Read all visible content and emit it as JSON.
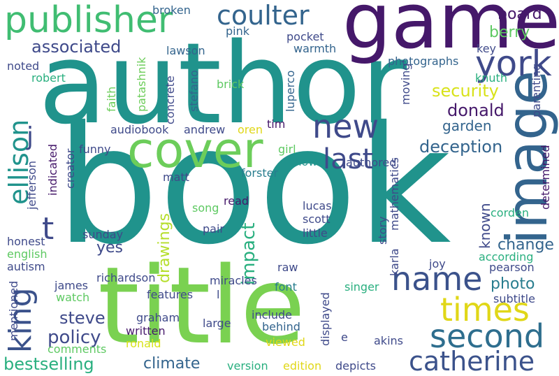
{
  "palette": {
    "dark_purple": "#45186a",
    "indigo": "#3f4a8a",
    "blue": "#33648d",
    "teal_blue": "#287d8e",
    "teal": "#20938c",
    "green_teal": "#29af7f",
    "green": "#5ec962",
    "light_green": "#7ad151",
    "lime": "#b5de2b",
    "yellow": "#e0d718"
  },
  "words": [
    {
      "text": "book",
      "color": "#20938c",
      "vertical": false
    },
    {
      "text": "author",
      "color": "#20938c",
      "vertical": false
    },
    {
      "text": "title",
      "color": "#7ad151",
      "vertical": false
    },
    {
      "text": "game",
      "color": "#45186a",
      "vertical": false
    },
    {
      "text": "image",
      "color": "#33648d",
      "vertical": true
    },
    {
      "text": "cover",
      "color": "#6ccd5a",
      "vertical": false
    },
    {
      "text": "publisher",
      "color": "#40bd72",
      "vertical": false
    },
    {
      "text": "second",
      "color": "#2e6e8e",
      "vertical": false
    },
    {
      "text": "name",
      "color": "#3b528b",
      "vertical": false
    },
    {
      "text": "catherine",
      "color": "#3b528b",
      "vertical": false
    },
    {
      "text": "times",
      "color": "#e0d718",
      "vertical": false
    },
    {
      "text": "new",
      "color": "#3f4a8a",
      "vertical": false
    },
    {
      "text": "king",
      "color": "#3b528b",
      "vertical": true
    },
    {
      "text": "coulter",
      "color": "#33648d",
      "vertical": false
    },
    {
      "text": "york",
      "color": "#3f4a8a",
      "vertical": false
    },
    {
      "text": "last",
      "color": "#3f4a8a",
      "vertical": false
    },
    {
      "text": "ellison",
      "color": "#20938c",
      "vertical": true
    },
    {
      "text": "t",
      "color": "#3f4a8a",
      "vertical": false
    },
    {
      "text": "j",
      "color": "#3f4a8a",
      "vertical": false
    },
    {
      "text": "steve",
      "color": "#3f4a8a",
      "vertical": false
    },
    {
      "text": "policy",
      "color": "#3f4a8a",
      "vertical": false
    },
    {
      "text": "bestselling",
      "color": "#29af7f",
      "vertical": false
    },
    {
      "text": "impact",
      "color": "#29af7f",
      "vertical": true
    },
    {
      "text": "security",
      "color": "#d8e219",
      "vertical": false
    },
    {
      "text": "drawings",
      "color": "#b5de2b",
      "vertical": true
    },
    {
      "text": "climate",
      "color": "#33648d",
      "vertical": false
    },
    {
      "text": "donald",
      "color": "#45186a",
      "vertical": false
    },
    {
      "text": "deception",
      "color": "#33648d",
      "vertical": false
    },
    {
      "text": "associated",
      "color": "#3f4a8a",
      "vertical": false
    },
    {
      "text": "board",
      "color": "#45186a",
      "vertical": false
    },
    {
      "text": "berry",
      "color": "#5ec962",
      "vertical": false
    },
    {
      "text": "garden",
      "color": "#33648d",
      "vertical": false
    },
    {
      "text": "photo",
      "color": "#287d8e",
      "vertical": false
    },
    {
      "text": "change",
      "color": "#33648d",
      "vertical": false
    },
    {
      "text": "known",
      "color": "#3f4a8a",
      "vertical": true
    },
    {
      "text": "yes",
      "color": "#3f4a8a",
      "vertical": false
    },
    {
      "text": "audiobook",
      "color": "#3f4a8a",
      "vertical": false
    },
    {
      "text": "andrew",
      "color": "#3f4a8a",
      "vertical": false
    },
    {
      "text": "oren",
      "color": "#e0d718",
      "vertical": false
    },
    {
      "text": "tim",
      "color": "#45186a",
      "vertical": false
    },
    {
      "text": "pocket",
      "color": "#3f4a8a",
      "vertical": false
    },
    {
      "text": "warmth",
      "color": "#33648d",
      "vertical": false
    },
    {
      "text": "photographs",
      "color": "#33648d",
      "vertical": false
    },
    {
      "text": "key",
      "color": "#3f4a8a",
      "vertical": false
    },
    {
      "text": "knuth",
      "color": "#29af7f",
      "vertical": false
    },
    {
      "text": "parenting",
      "color": "#3f4a8a",
      "vertical": true
    },
    {
      "text": "broken",
      "color": "#33648d",
      "vertical": false
    },
    {
      "text": "pink",
      "color": "#33648d",
      "vertical": false
    },
    {
      "text": "lawson",
      "color": "#33648d",
      "vertical": false
    },
    {
      "text": "noted",
      "color": "#3f4a8a",
      "vertical": false
    },
    {
      "text": "robert",
      "color": "#29af7f",
      "vertical": false
    },
    {
      "text": "faith",
      "color": "#6ccd5a",
      "vertical": true
    },
    {
      "text": "patashnik",
      "color": "#6ccd5a",
      "vertical": true
    },
    {
      "text": "concrete",
      "color": "#3f4a8a",
      "vertical": true
    },
    {
      "text": "stefano",
      "color": "#33648d",
      "vertical": true
    },
    {
      "text": "brick",
      "color": "#5ec962",
      "vertical": false
    },
    {
      "text": "luperco",
      "color": "#33648d",
      "vertical": true
    },
    {
      "text": "moving'",
      "color": "#3f4a8a",
      "vertical": true
    },
    {
      "text": "funny",
      "color": "#3f4a8a",
      "vertical": false
    },
    {
      "text": "girl",
      "color": "#5ec962",
      "vertical": false
    },
    {
      "text": "shown",
      "color": "#20938c",
      "vertical": false
    },
    {
      "text": "forster",
      "color": "#287d8e",
      "vertical": false
    },
    {
      "text": "matt",
      "color": "#3f4a8a",
      "vertical": false
    },
    {
      "text": "indicated",
      "color": "#45186a",
      "vertical": true
    },
    {
      "text": "creator",
      "color": "#3f4a8a",
      "vertical": true
    },
    {
      "text": "jefferson",
      "color": "#3f4a8a",
      "vertical": true
    },
    {
      "text": "authored",
      "color": "#3f4a8a",
      "vertical": false
    },
    {
      "text": "determined",
      "color": "#45186a",
      "vertical": true
    },
    {
      "text": "mathematics",
      "color": "#3f4a8a",
      "vertical": true
    },
    {
      "text": "sunday",
      "color": "#3f4a8a",
      "vertical": false
    },
    {
      "text": "song",
      "color": "#5ec962",
      "vertical": false
    },
    {
      "text": "read",
      "color": "#45186a",
      "vertical": false
    },
    {
      "text": "lucas",
      "color": "#3f4a8a",
      "vertical": false
    },
    {
      "text": "scott",
      "color": "#3f4a8a",
      "vertical": false
    },
    {
      "text": "little",
      "color": "#3f4a8a",
      "vertical": false
    },
    {
      "text": "story",
      "color": "#3f4a8a",
      "vertical": true
    },
    {
      "text": "corden",
      "color": "#29af7f",
      "vertical": false
    },
    {
      "text": "pair",
      "color": "#3f4a8a",
      "vertical": false
    },
    {
      "text": "honest",
      "color": "#3f4a8a",
      "vertical": false
    },
    {
      "text": "english",
      "color": "#5ec962",
      "vertical": false
    },
    {
      "text": "autism",
      "color": "#3f4a8a",
      "vertical": false
    },
    {
      "text": "karla",
      "color": "#3f4a8a",
      "vertical": true
    },
    {
      "text": "joy",
      "color": "#3f4a8a",
      "vertical": false
    },
    {
      "text": "according",
      "color": "#29af7f",
      "vertical": false
    },
    {
      "text": "pearson",
      "color": "#3f4a8a",
      "vertical": false
    },
    {
      "text": "raw",
      "color": "#3f4a8a",
      "vertical": false
    },
    {
      "text": "mentioned",
      "color": "#3f4a8a",
      "vertical": true
    },
    {
      "text": "james",
      "color": "#3f4a8a",
      "vertical": false
    },
    {
      "text": "richardson",
      "color": "#3f4a8a",
      "vertical": false
    },
    {
      "text": "miracles",
      "color": "#3f4a8a",
      "vertical": false
    },
    {
      "text": "l",
      "color": "#3f4a8a",
      "vertical": false
    },
    {
      "text": "font",
      "color": "#287d8e",
      "vertical": false
    },
    {
      "text": "singer",
      "color": "#29af7f",
      "vertical": false
    },
    {
      "text": "features",
      "color": "#3f4a8a",
      "vertical": false
    },
    {
      "text": "watch",
      "color": "#5ec962",
      "vertical": false
    },
    {
      "text": "subtitle",
      "color": "#3f4a8a",
      "vertical": false
    },
    {
      "text": "graham",
      "color": "#3f4a8a",
      "vertical": false
    },
    {
      "text": "include",
      "color": "#3f4a8a",
      "vertical": false
    },
    {
      "text": "behind",
      "color": "#33648d",
      "vertical": false
    },
    {
      "text": "displayed",
      "color": "#3f4a8a",
      "vertical": true
    },
    {
      "text": "large",
      "color": "#3f4a8a",
      "vertical": false
    },
    {
      "text": "written",
      "color": "#45186a",
      "vertical": false
    },
    {
      "text": "ronald",
      "color": "#d8e219",
      "vertical": false
    },
    {
      "text": "viewed",
      "color": "#e0d718",
      "vertical": false
    },
    {
      "text": "comments",
      "color": "#5ec962",
      "vertical": false
    },
    {
      "text": "e",
      "color": "#3f4a8a",
      "vertical": false
    },
    {
      "text": "akins",
      "color": "#3f4a8a",
      "vertical": false
    },
    {
      "text": "version",
      "color": "#29af7f",
      "vertical": false
    },
    {
      "text": "edition",
      "color": "#e0d718",
      "vertical": false
    },
    {
      "text": "depicts",
      "color": "#3f4a8a",
      "vertical": false
    }
  ]
}
